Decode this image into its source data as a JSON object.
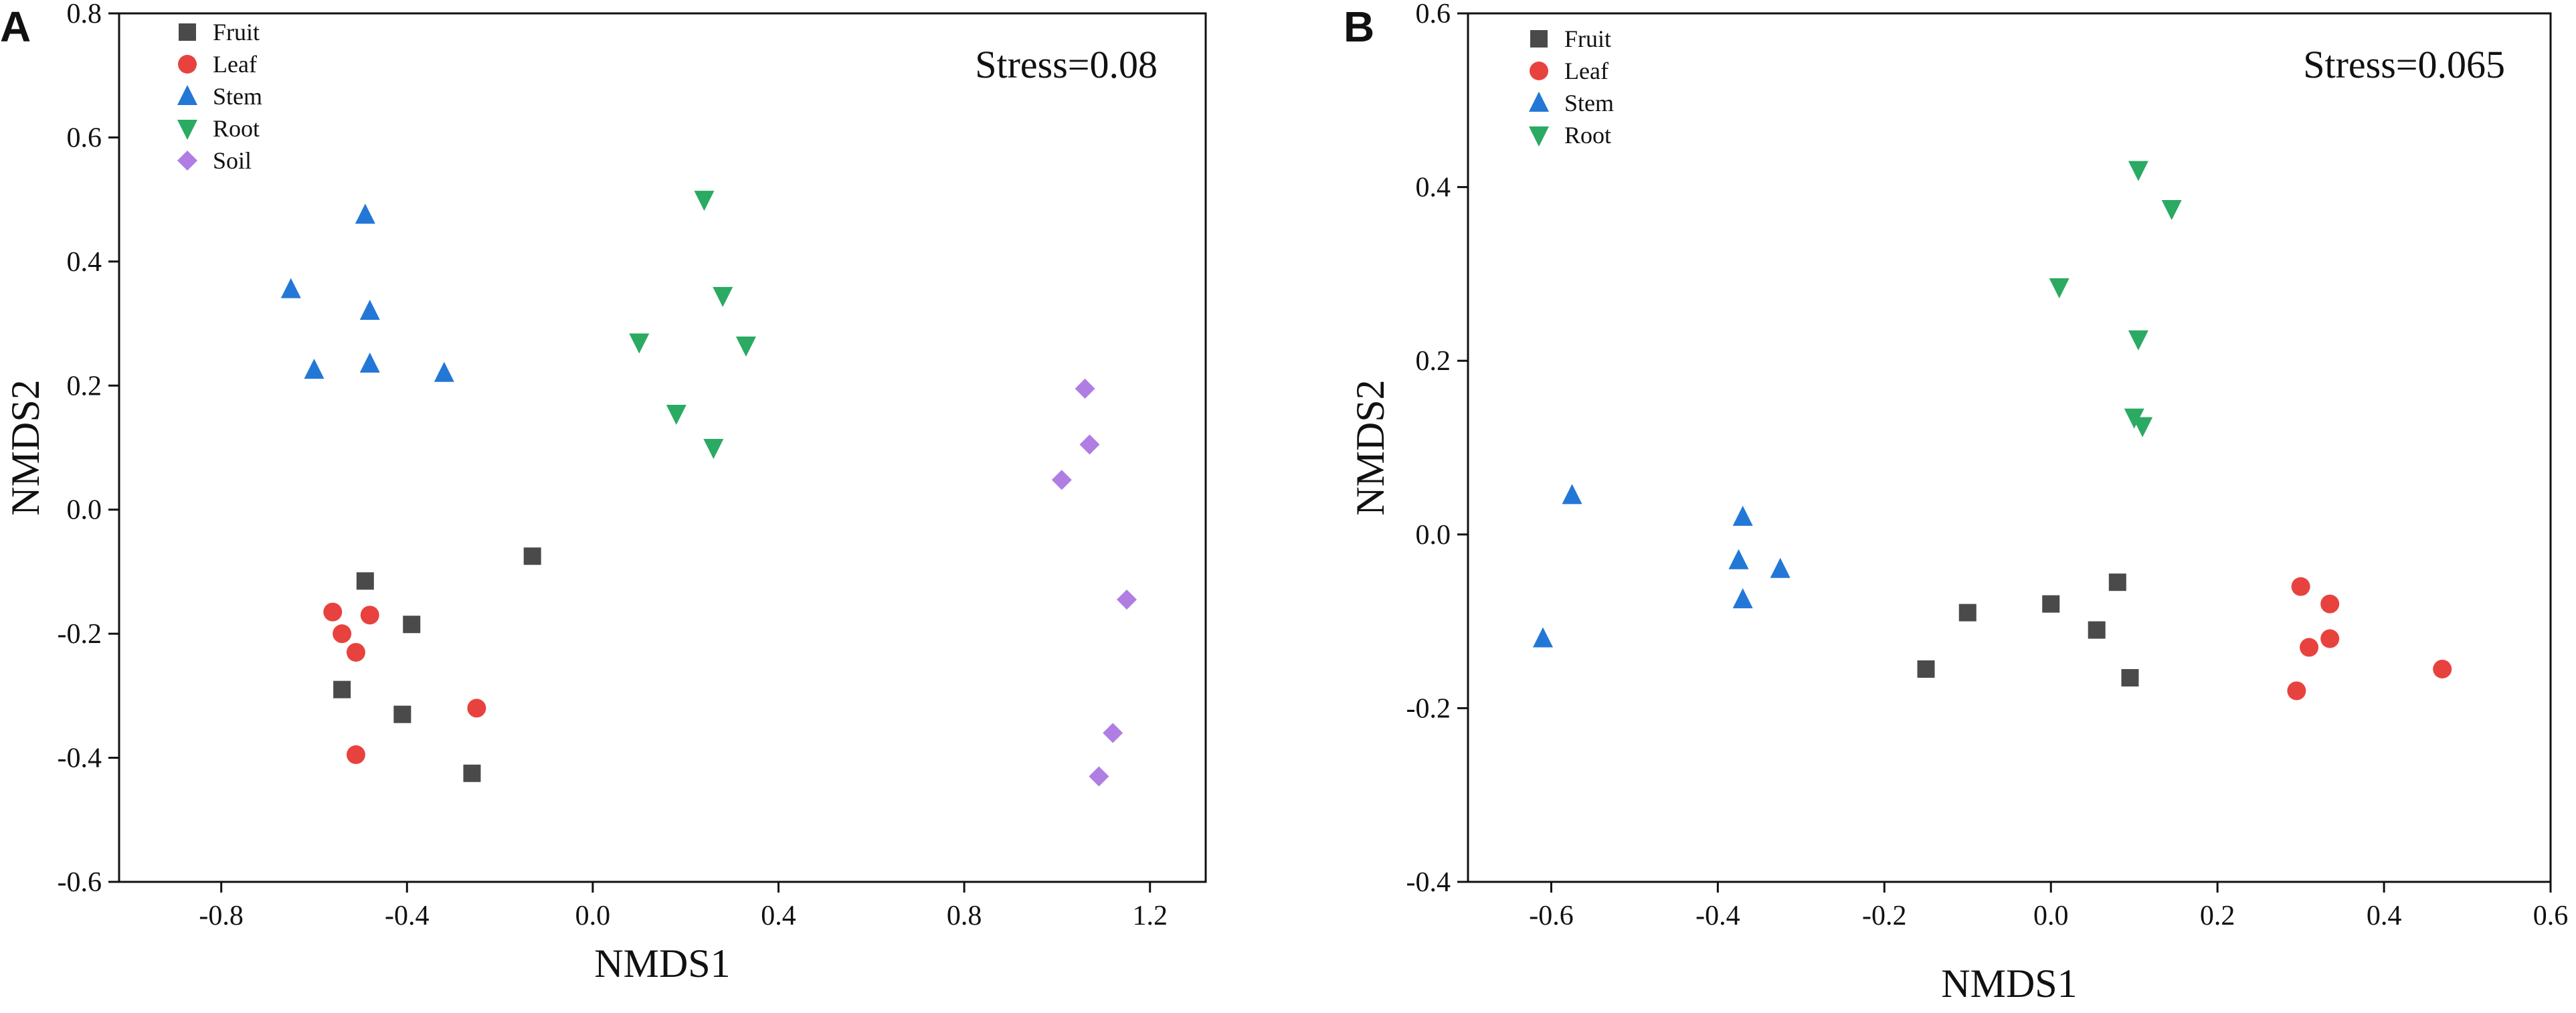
{
  "chart_data": [
    {
      "type": "scatter",
      "panel": "A",
      "xlabel": "NMDS1",
      "ylabel": "NMDS2",
      "xlim": [
        -1.02,
        1.32
      ],
      "ylim": [
        -0.6,
        0.8
      ],
      "xticks": [
        -0.8,
        -0.4,
        0.0,
        0.4,
        0.8,
        1.2
      ],
      "xtick_labels": [
        "-0.8",
        "-0.4",
        "0.0",
        "0.4",
        "0.8",
        "1.2"
      ],
      "yticks": [
        -0.6,
        -0.4,
        -0.2,
        0.0,
        0.2,
        0.4,
        0.6,
        0.8
      ],
      "ytick_labels": [
        "-0.6",
        "-0.4",
        "-0.2",
        "0.0",
        "0.2",
        "0.4",
        "0.6",
        "0.8"
      ],
      "annotation": "Stress=0.08",
      "legend_position": "top-left",
      "grid": false,
      "series": [
        {
          "name": "Fruit",
          "marker": "square",
          "color": "#4a4a4a",
          "points": [
            [
              -0.49,
              -0.115
            ],
            [
              -0.39,
              -0.185
            ],
            [
              -0.54,
              -0.29
            ],
            [
              -0.41,
              -0.33
            ],
            [
              -0.26,
              -0.425
            ],
            [
              -0.13,
              -0.075
            ]
          ]
        },
        {
          "name": "Leaf",
          "marker": "circle",
          "color": "#e8423f",
          "points": [
            [
              -0.56,
              -0.165
            ],
            [
              -0.54,
              -0.2
            ],
            [
              -0.48,
              -0.17
            ],
            [
              -0.51,
              -0.23
            ],
            [
              -0.51,
              -0.395
            ],
            [
              -0.25,
              -0.32
            ]
          ]
        },
        {
          "name": "Stem",
          "marker": "triangle-up",
          "color": "#2377d6",
          "points": [
            [
              -0.49,
              0.475
            ],
            [
              -0.65,
              0.355
            ],
            [
              -0.48,
              0.32
            ],
            [
              -0.6,
              0.225
            ],
            [
              -0.48,
              0.235
            ],
            [
              -0.32,
              0.22
            ]
          ]
        },
        {
          "name": "Root",
          "marker": "triangle-down",
          "color": "#2aaa62",
          "points": [
            [
              0.24,
              0.5
            ],
            [
              0.28,
              0.345
            ],
            [
              0.33,
              0.265
            ],
            [
              0.1,
              0.27
            ],
            [
              0.18,
              0.155
            ],
            [
              0.26,
              0.1
            ]
          ]
        },
        {
          "name": "Soil",
          "marker": "diamond",
          "color": "#b07ee3",
          "points": [
            [
              1.06,
              0.195
            ],
            [
              1.07,
              0.105
            ],
            [
              1.01,
              0.048
            ],
            [
              1.15,
              -0.145
            ],
            [
              1.12,
              -0.36
            ],
            [
              1.09,
              -0.43
            ]
          ]
        }
      ]
    },
    {
      "type": "scatter",
      "panel": "B",
      "xlabel": "NMDS1",
      "ylabel": "NMDS2",
      "xlim": [
        -0.7,
        0.6
      ],
      "ylim": [
        -0.4,
        0.6
      ],
      "xticks": [
        -0.6,
        -0.4,
        -0.2,
        0.0,
        0.2,
        0.4,
        0.6
      ],
      "xtick_labels": [
        "-0.6",
        "-0.4",
        "-0.2",
        "0.0",
        "0.2",
        "0.4",
        "0.6"
      ],
      "yticks": [
        -0.4,
        -0.2,
        0.0,
        0.2,
        0.4,
        0.6
      ],
      "ytick_labels": [
        "-0.4",
        "-0.2",
        "0.0",
        "0.2",
        "0.4",
        "0.6"
      ],
      "annotation": "Stress=0.065",
      "legend_position": "top-left",
      "grid": false,
      "series": [
        {
          "name": "Fruit",
          "marker": "square",
          "color": "#4a4a4a",
          "points": [
            [
              -0.15,
              -0.155
            ],
            [
              -0.1,
              -0.09
            ],
            [
              0.0,
              -0.08
            ],
            [
              0.055,
              -0.11
            ],
            [
              0.08,
              -0.055
            ],
            [
              0.095,
              -0.165
            ]
          ]
        },
        {
          "name": "Leaf",
          "marker": "circle",
          "color": "#e8423f",
          "points": [
            [
              0.3,
              -0.06
            ],
            [
              0.335,
              -0.08
            ],
            [
              0.335,
              -0.12
            ],
            [
              0.31,
              -0.13
            ],
            [
              0.295,
              -0.18
            ],
            [
              0.47,
              -0.155
            ]
          ]
        },
        {
          "name": "Stem",
          "marker": "triangle-up",
          "color": "#2377d6",
          "points": [
            [
              -0.575,
              0.045
            ],
            [
              -0.61,
              -0.12
            ],
            [
              -0.37,
              0.02
            ],
            [
              -0.375,
              -0.03
            ],
            [
              -0.325,
              -0.04
            ],
            [
              -0.37,
              -0.075
            ]
          ]
        },
        {
          "name": "Root",
          "marker": "triangle-down",
          "color": "#2aaa62",
          "points": [
            [
              0.105,
              0.42
            ],
            [
              0.145,
              0.375
            ],
            [
              0.01,
              0.285
            ],
            [
              0.105,
              0.225
            ],
            [
              0.1,
              0.135
            ],
            [
              0.11,
              0.125
            ]
          ]
        }
      ]
    }
  ]
}
